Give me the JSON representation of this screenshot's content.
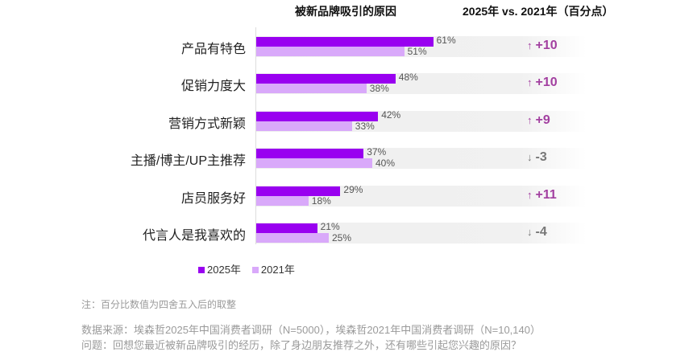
{
  "chart_data": {
    "type": "bar",
    "orientation": "horizontal",
    "title": "被新品牌吸引的原因",
    "delta_title": "2025年 vs. 2021年（百分点）",
    "categories": [
      "产品有特色",
      "促销力度大",
      "营销方式新颖",
      "主播/博主/UP主推荐",
      "店员服务好",
      "代言人是我喜欢的"
    ],
    "series": [
      {
        "name": "2025年",
        "color": "#9900f0",
        "values": [
          61,
          48,
          42,
          37,
          29,
          21
        ]
      },
      {
        "name": "2021年",
        "color": "#d9a9fa",
        "values": [
          51,
          38,
          33,
          40,
          18,
          25
        ]
      }
    ],
    "value_labels": {
      "2025": [
        "61%",
        "48%",
        "42%",
        "37%",
        "29%",
        "21%"
      ],
      "2021": [
        "51%",
        "38%",
        "33%",
        "40%",
        "18%",
        "25%"
      ]
    },
    "deltas": [
      "+10",
      "+10",
      "+9",
      "-3",
      "+11",
      "-4"
    ],
    "delta_colors": {
      "up": "#a23fa0",
      "down": "#777777"
    },
    "legend_position": "bottom",
    "grid": false
  },
  "notes": {
    "note": "注：百分比数值为四舍五入后的取整",
    "source": "数据来源：埃森哲2025年中国消费者调研（N=5000），埃森哲2021年中国消费者调研（N=10,140）",
    "question": "问题：回想您最近被新品牌吸引的经历，除了身边朋友推荐之外，还有哪些引起您兴趣的原因？"
  }
}
